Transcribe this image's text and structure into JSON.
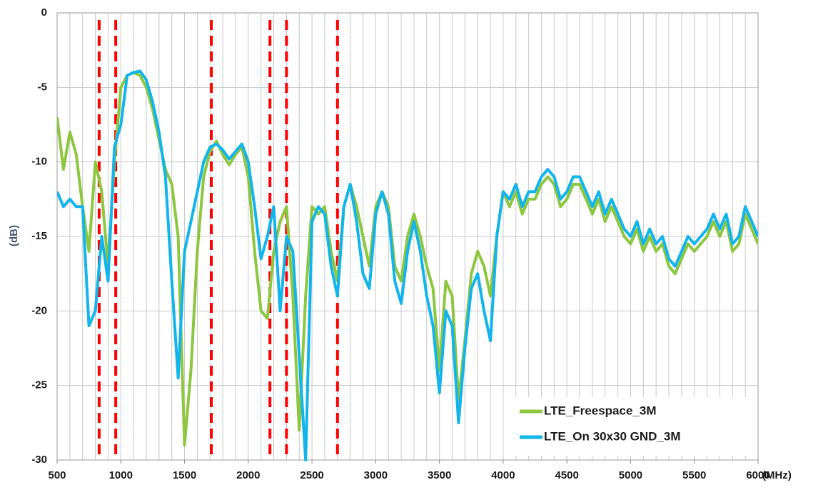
{
  "chart_data": {
    "type": "line",
    "xlabel": "(MHz)",
    "ylabel": "(dB)",
    "x": [
      500,
      550,
      600,
      650,
      700,
      750,
      800,
      850,
      900,
      950,
      1000,
      1050,
      1100,
      1150,
      1200,
      1250,
      1300,
      1350,
      1400,
      1450,
      1500,
      1550,
      1600,
      1650,
      1700,
      1750,
      1800,
      1850,
      1900,
      1950,
      2000,
      2050,
      2100,
      2150,
      2200,
      2250,
      2300,
      2350,
      2400,
      2450,
      2500,
      2550,
      2600,
      2650,
      2700,
      2750,
      2800,
      2850,
      2900,
      2950,
      3000,
      3050,
      3100,
      3150,
      3200,
      3250,
      3300,
      3350,
      3400,
      3450,
      3500,
      3550,
      3600,
      3650,
      3700,
      3750,
      3800,
      3850,
      3900,
      3950,
      4000,
      4050,
      4100,
      4150,
      4200,
      4250,
      4300,
      4350,
      4400,
      4450,
      4500,
      4550,
      4600,
      4650,
      4700,
      4750,
      4800,
      4850,
      4900,
      4950,
      5000,
      5050,
      5100,
      5150,
      5200,
      5250,
      5300,
      5350,
      5400,
      5450,
      5500,
      5550,
      5600,
      5650,
      5700,
      5750,
      5800,
      5850,
      5900,
      5950,
      6000
    ],
    "series": [
      {
        "name": "LTE_Freespace_3M",
        "color": "#8dc63f",
        "values": [
          -7,
          -10.5,
          -8,
          -9.5,
          -13,
          -16,
          -10,
          -12,
          -17,
          -10,
          -5,
          -4.2,
          -4,
          -4.2,
          -5,
          -6.5,
          -8.5,
          -10.5,
          -11.5,
          -15,
          -29,
          -24,
          -16,
          -11,
          -9.3,
          -8.6,
          -9.5,
          -10.2,
          -9.5,
          -9,
          -11,
          -16,
          -20,
          -20.5,
          -16,
          -14,
          -13,
          -19,
          -28,
          -19,
          -13,
          -13.5,
          -13,
          -16,
          -18,
          -13,
          -11.5,
          -13,
          -15,
          -17,
          -13,
          -12,
          -13,
          -17,
          -18,
          -15,
          -13.5,
          -15,
          -17,
          -18.5,
          -24,
          -18,
          -19,
          -26,
          -22,
          -17.5,
          -16,
          -17,
          -19,
          -15,
          -12,
          -13,
          -12,
          -13.5,
          -12.5,
          -12.5,
          -11.5,
          -11,
          -11.5,
          -13,
          -12.5,
          -11.5,
          -11.5,
          -12.5,
          -13.5,
          -12.5,
          -14,
          -13,
          -14,
          -15,
          -15.5,
          -14.5,
          -16,
          -15,
          -16,
          -15.5,
          -17,
          -17.5,
          -16.5,
          -15.5,
          -16,
          -15.5,
          -15,
          -14,
          -15,
          -14,
          -16,
          -15.5,
          -13.5,
          -14.5,
          -15.5
        ]
      },
      {
        "name": "LTE_On 30x30 GND_3M",
        "color": "#12b4ec",
        "values": [
          -12,
          -13,
          -12.5,
          -13,
          -13,
          -21,
          -20,
          -15,
          -18,
          -9,
          -7.5,
          -4.2,
          -4,
          -3.9,
          -4.5,
          -6,
          -8,
          -11,
          -18,
          -24.5,
          -16,
          -14,
          -12,
          -10,
          -9,
          -8.8,
          -9.2,
          -9.8,
          -9.3,
          -8.8,
          -10,
          -13,
          -16.5,
          -15,
          -13,
          -20,
          -15,
          -16,
          -23,
          -30,
          -14,
          -13,
          -13.5,
          -17,
          -19,
          -13,
          -11.5,
          -14,
          -17.5,
          -18.5,
          -13.5,
          -12,
          -13.5,
          -18,
          -19.5,
          -16,
          -14,
          -16,
          -19,
          -21,
          -25.5,
          -20,
          -21,
          -27.5,
          -22.5,
          -18.5,
          -17.5,
          -20,
          -22,
          -15,
          -12,
          -12.5,
          -11.5,
          -13,
          -12,
          -12,
          -11,
          -10.5,
          -11,
          -12.5,
          -12,
          -11,
          -11,
          -12,
          -13,
          -12,
          -13.5,
          -12.5,
          -13.5,
          -14.5,
          -15,
          -14,
          -15.5,
          -14.5,
          -15.5,
          -15,
          -16.5,
          -17,
          -16,
          -15,
          -15.5,
          -15,
          -14.5,
          -13.5,
          -14.5,
          -13.5,
          -15.5,
          -15,
          -13,
          -14,
          -15
        ]
      }
    ],
    "markers": {
      "color": "#ff0000",
      "values": [
        830,
        960,
        1710,
        2170,
        2300,
        2700
      ]
    },
    "xlim": [
      500,
      6000
    ],
    "xticks": [
      500,
      1000,
      1500,
      2000,
      2500,
      3000,
      3500,
      4000,
      4500,
      5000,
      5500,
      6000
    ],
    "ylim": [
      -30,
      0
    ],
    "yticks": [
      0,
      -5,
      -10,
      -15,
      -20,
      -25,
      -30
    ],
    "grid": true,
    "minor_grid_step": 100,
    "legend": "lower right"
  }
}
